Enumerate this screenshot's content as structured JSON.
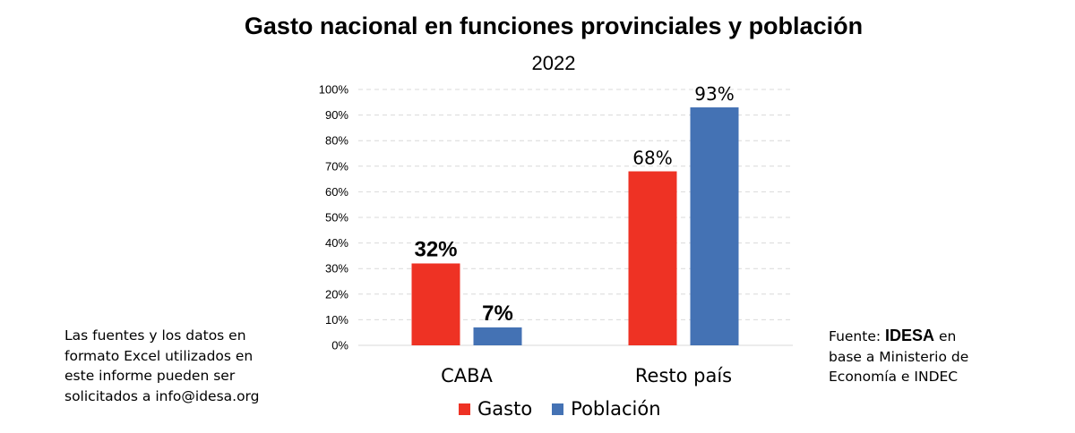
{
  "title": "Gasto nacional en funciones provinciales y población",
  "subtitle": "2022",
  "chart_data": {
    "type": "bar",
    "title": "Gasto nacional en funciones provinciales y población",
    "subtitle": "2022",
    "categories": [
      "CABA",
      "Resto país"
    ],
    "series": [
      {
        "name": "Gasto",
        "color": "#EE3224",
        "values": [
          32,
          68
        ],
        "labels": [
          "32%",
          "68%"
        ]
      },
      {
        "name": "Población",
        "color": "#4472B4",
        "values": [
          7,
          93
        ],
        "labels": [
          "7%",
          "93%"
        ]
      }
    ],
    "ylim": [
      0,
      100
    ],
    "yticks": [
      "0%",
      "10%",
      "20%",
      "30%",
      "40%",
      "50%",
      "60%",
      "70%",
      "80%",
      "90%",
      "100%"
    ],
    "grid": true,
    "legend": "bottom"
  },
  "notes": {
    "left_lines": [
      "Las fuentes y los datos en",
      "formato Excel utilizados en",
      "este informe pueden ser",
      "solicitados a info@idesa.org"
    ],
    "source_prefix": "Fuente: ",
    "source_brand": "IDESA",
    "source_suffix": " en",
    "source_lines": [
      "base a Ministerio de",
      "Economía e INDEC"
    ]
  }
}
